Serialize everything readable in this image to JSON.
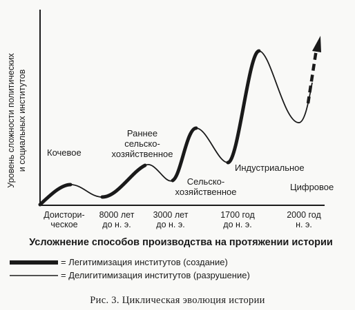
{
  "figure": {
    "y_axis_label_line1": "Уровень сложности политических",
    "y_axis_label_line2": "и социальных институтов",
    "x_axis_title": "Усложнение способов производства на протяжении истории",
    "stages": {
      "nomadic": "Кочевое",
      "early_agri_1": "Раннее",
      "early_agri_2": "сельско-",
      "early_agri_3": "хозяйственное",
      "agri_1": "Сельско-",
      "agri_2": "хозяйственное",
      "industrial": "Индустриальное",
      "digital": "Цифровое"
    },
    "ticks": [
      {
        "line1": "Доистори-",
        "line2": "ческое"
      },
      {
        "line1": "8000 лет",
        "line2": "до н. э."
      },
      {
        "line1": "3000 лет",
        "line2": "до н. э."
      },
      {
        "line1": "1700 год",
        "line2": "до н. э."
      },
      {
        "line1": "2000 год",
        "line2": "н. э."
      }
    ],
    "legend": {
      "thick_label": "= Легитимизация институтов (создание)",
      "thin_label": "= Делигитимизация институтов (разрушение)"
    },
    "caption": "Рис. 3. Циклическая эволюция истории"
  },
  "colors": {
    "ink": "#1a1a1a",
    "paper": "#f9f9f7"
  }
}
